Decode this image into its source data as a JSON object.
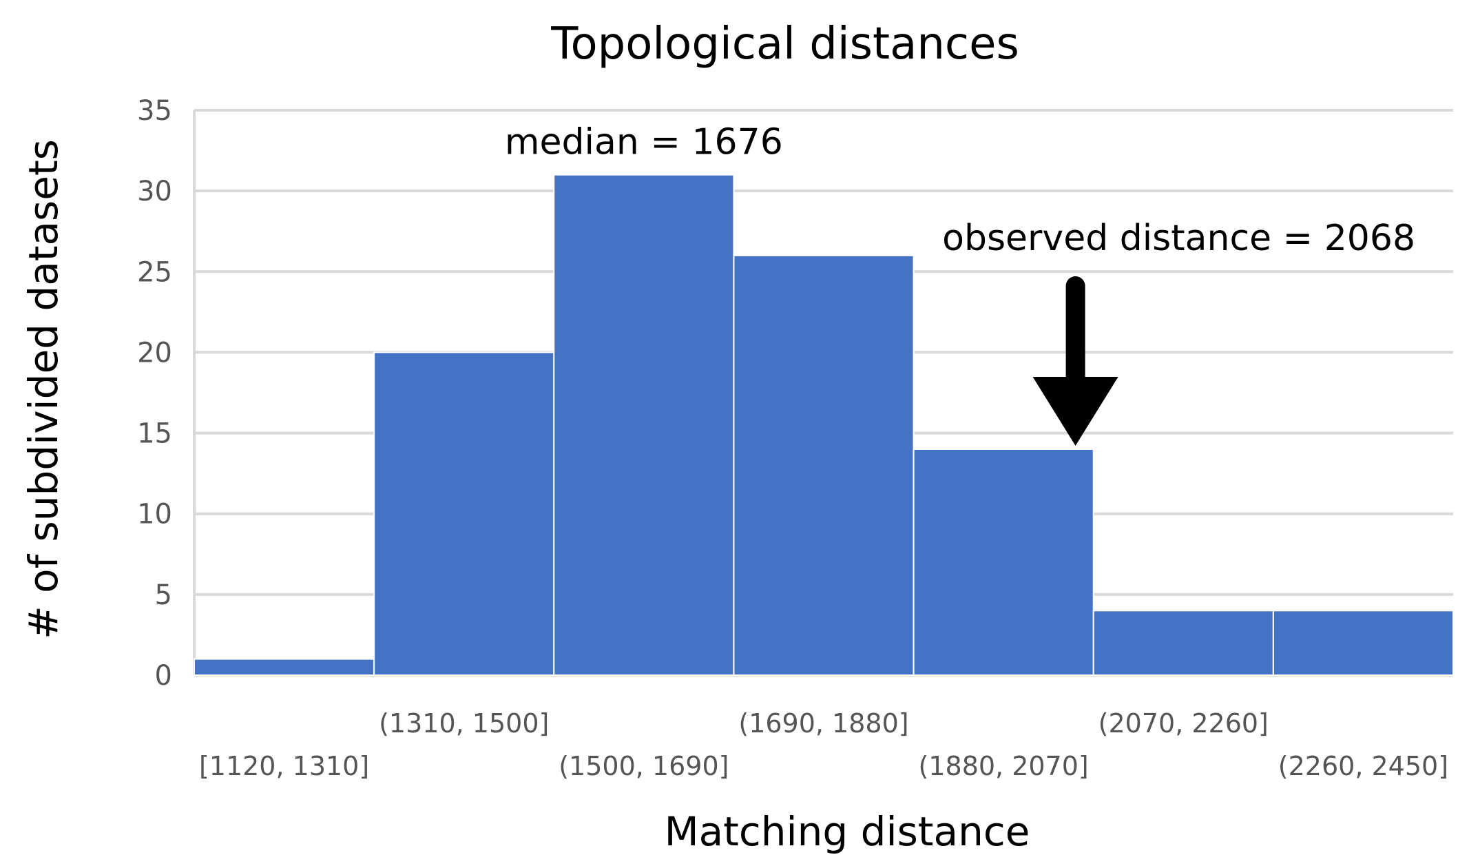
{
  "chart_data": {
    "type": "bar",
    "title": "Topological distances",
    "xlabel": "Matching distance",
    "ylabel": "# of subdivided datasets",
    "categories": [
      "[1120, 1310]",
      "(1310, 1500]",
      "(1500, 1690]",
      "(1690, 1880]",
      "(1880, 2070]",
      "(2070, 2260]",
      "(2260, 2450]"
    ],
    "values": [
      1,
      20,
      31,
      26,
      14,
      4,
      4
    ],
    "ylim": [
      0,
      35
    ],
    "yticks": [
      0,
      5,
      10,
      15,
      20,
      25,
      30,
      35
    ],
    "grid": true,
    "legend": "none",
    "bar_color": "#4472c4",
    "annotations": {
      "median": {
        "text": "median = 1676",
        "category_index": 2
      },
      "observed": {
        "text": "observed distance = 2068",
        "category_index": 4
      }
    }
  }
}
